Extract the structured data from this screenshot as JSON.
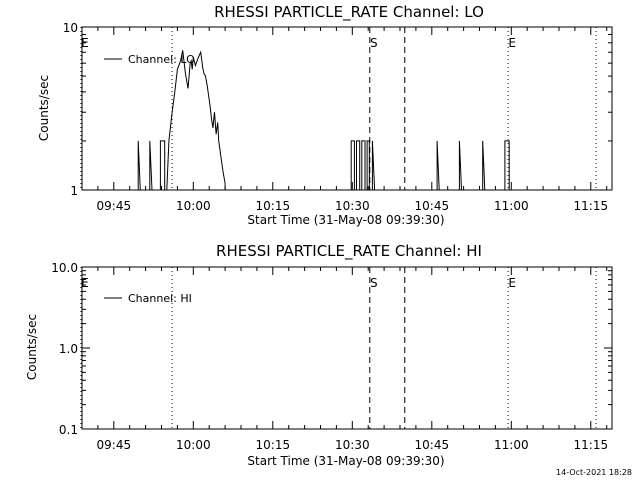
{
  "chart_data": [
    {
      "type": "line",
      "title": "RHESSI PARTICLE_RATE Channel: LO",
      "xlabel": "Start Time (31-May-08 09:39:30)",
      "ylabel": "Counts/sec",
      "yscale": "log",
      "ylim": [
        1,
        10
      ],
      "ytick_labels": [
        "1",
        "10"
      ],
      "xlim_minutes": [
        0,
        100
      ],
      "xtick_minutes": [
        6,
        21,
        36,
        51,
        66,
        81,
        96
      ],
      "xtick_labels": [
        "09:45",
        "10:00",
        "10:15",
        "10:30",
        "10:45",
        "11:00",
        "11:15"
      ],
      "series": [
        {
          "name": "Channel: LO",
          "t": [
            10.2,
            10.6,
            10.6,
            11.0,
            12.4,
            12.8,
            12.8,
            13.2,
            14.4,
            14.8,
            14.8,
            15.6,
            15.6,
            16.0,
            16.4,
            17.0,
            17.5,
            18.0,
            18.6,
            19.0,
            19.5,
            20.0,
            20.2,
            20.4,
            20.6,
            20.8,
            21.0,
            21.4,
            21.8,
            22.2,
            22.4,
            22.8,
            23.0,
            23.3,
            23.6,
            23.8,
            24.2,
            24.4,
            24.7,
            25.0,
            25.3,
            25.6,
            25.8,
            26.0,
            26.2,
            26.6,
            27.0,
            27.0,
            30.0,
            50.0,
            50.8,
            50.8,
            51.4,
            51.4,
            51.8,
            51.8,
            52.4,
            52.4,
            52.8,
            52.8,
            53.4,
            53.4,
            53.8,
            53.8,
            54.2,
            54.2,
            54.8,
            54.8,
            55.2,
            66.6,
            67.0,
            67.0,
            67.4,
            70.8,
            71.2,
            71.2,
            71.6,
            75.2,
            75.6,
            75.6,
            76.0,
            79.4,
            79.8,
            79.8,
            80.6,
            80.6,
            81.0
          ],
          "counts": [
            1,
            1,
            2,
            1,
            1,
            1,
            2,
            1,
            1,
            1,
            2,
            2,
            1,
            1,
            2,
            3,
            4,
            5.5,
            6.2,
            7.2,
            5.2,
            4.2,
            5,
            6,
            6.2,
            5.5,
            6.5,
            5.8,
            6.3,
            6.8,
            7,
            5.6,
            5.2,
            5.0,
            4.4,
            4.0,
            3.2,
            2.8,
            2.4,
            3.0,
            2.2,
            2.6,
            2.0,
            1.8,
            1.6,
            1.3,
            1.1,
            1,
            1,
            1,
            1,
            2,
            2,
            1,
            1,
            2,
            2,
            1,
            1,
            2,
            2,
            1,
            1,
            2,
            2,
            1,
            1,
            2,
            1,
            1,
            1,
            2,
            1,
            1,
            1,
            2,
            1,
            1,
            1,
            2,
            1,
            1,
            1,
            2,
            2,
            1,
            1
          ]
        }
      ],
      "markers": [
        {
          "label": "E",
          "t": -0.2,
          "style": "dotted"
        },
        {
          "label": "",
          "t": 17.0,
          "style": "dotted"
        },
        {
          "label": "S",
          "t": 54.3,
          "style": "dashed"
        },
        {
          "label": "",
          "t": 60.9,
          "style": "dashed"
        },
        {
          "label": "E",
          "t": 80.4,
          "style": "dotted"
        },
        {
          "label": "",
          "t": 97.0,
          "style": "dotted"
        }
      ],
      "legend": "Channel: LO"
    },
    {
      "type": "line",
      "title": "RHESSI PARTICLE_RATE Channel: HI",
      "xlabel": "Start Time (31-May-08 09:39:30)",
      "ylabel": "Counts/sec",
      "yscale": "log",
      "ylim": [
        0.1,
        10
      ],
      "ytick_labels": [
        "0.1",
        "1.0",
        "10.0"
      ],
      "xlim_minutes": [
        0,
        100
      ],
      "xtick_minutes": [
        6,
        21,
        36,
        51,
        66,
        81,
        96
      ],
      "xtick_labels": [
        "09:45",
        "10:00",
        "10:15",
        "10:30",
        "10:45",
        "11:00",
        "11:15"
      ],
      "series": [
        {
          "name": "Channel: HI",
          "t": [],
          "counts": []
        }
      ],
      "markers": [
        {
          "label": "E",
          "t": -0.2,
          "style": "dotted"
        },
        {
          "label": "",
          "t": 17.0,
          "style": "dotted"
        },
        {
          "label": "S",
          "t": 54.3,
          "style": "dashed"
        },
        {
          "label": "",
          "t": 60.9,
          "style": "dashed"
        },
        {
          "label": "E",
          "t": 80.4,
          "style": "dotted"
        },
        {
          "label": "",
          "t": 97.0,
          "style": "dotted"
        }
      ],
      "legend": "Channel: HI"
    }
  ],
  "timestamp": "14-Oct-2021 18:28"
}
